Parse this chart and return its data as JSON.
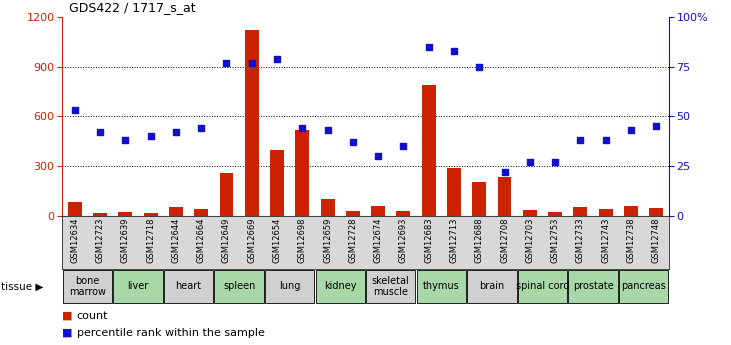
{
  "title": "GDS422 / 1717_s_at",
  "samples": [
    "GSM12634",
    "GSM12723",
    "GSM12639",
    "GSM12718",
    "GSM12644",
    "GSM12664",
    "GSM12649",
    "GSM12669",
    "GSM12654",
    "GSM12698",
    "GSM12659",
    "GSM12728",
    "GSM12674",
    "GSM12693",
    "GSM12683",
    "GSM12713",
    "GSM12688",
    "GSM12708",
    "GSM12703",
    "GSM12753",
    "GSM12733",
    "GSM12743",
    "GSM12738",
    "GSM12748"
  ],
  "bar_values": [
    80,
    15,
    20,
    15,
    55,
    40,
    260,
    1120,
    400,
    520,
    100,
    30,
    60,
    25,
    790,
    290,
    205,
    235,
    35,
    20,
    55,
    40,
    60,
    45
  ],
  "dot_values_pct": [
    53,
    42,
    38,
    40,
    42,
    44,
    77,
    77,
    79,
    44,
    43,
    37,
    30,
    35,
    85,
    83,
    75,
    22,
    27,
    27,
    38,
    38,
    43,
    45
  ],
  "tissues": [
    {
      "name": "bone\nmarrow",
      "start": 0,
      "end": 2,
      "color": "#d0d0d0"
    },
    {
      "name": "liver",
      "start": 2,
      "end": 4,
      "color": "#a8d8a8"
    },
    {
      "name": "heart",
      "start": 4,
      "end": 6,
      "color": "#d0d0d0"
    },
    {
      "name": "spleen",
      "start": 6,
      "end": 8,
      "color": "#a8d8a8"
    },
    {
      "name": "lung",
      "start": 8,
      "end": 10,
      "color": "#d0d0d0"
    },
    {
      "name": "kidney",
      "start": 10,
      "end": 12,
      "color": "#a8d8a8"
    },
    {
      "name": "skeletal\nmuscle",
      "start": 12,
      "end": 14,
      "color": "#d0d0d0"
    },
    {
      "name": "thymus",
      "start": 14,
      "end": 16,
      "color": "#a8d8a8"
    },
    {
      "name": "brain",
      "start": 16,
      "end": 18,
      "color": "#d0d0d0"
    },
    {
      "name": "spinal cord",
      "start": 18,
      "end": 20,
      "color": "#a8d8a8"
    },
    {
      "name": "prostate",
      "start": 20,
      "end": 22,
      "color": "#a8d8a8"
    },
    {
      "name": "pancreas",
      "start": 22,
      "end": 24,
      "color": "#a8d8a8"
    }
  ],
  "ylim_left": [
    0,
    1200
  ],
  "ylim_right": [
    0,
    100
  ],
  "yticks_left": [
    0,
    300,
    600,
    900,
    1200
  ],
  "yticks_right": [
    0,
    25,
    50,
    75,
    100
  ],
  "bar_color": "#cc2200",
  "dot_color": "#1111cc",
  "bg_color": "#ffffff",
  "tissue_label_fontsize": 7.0,
  "sample_label_fontsize": 6.0
}
